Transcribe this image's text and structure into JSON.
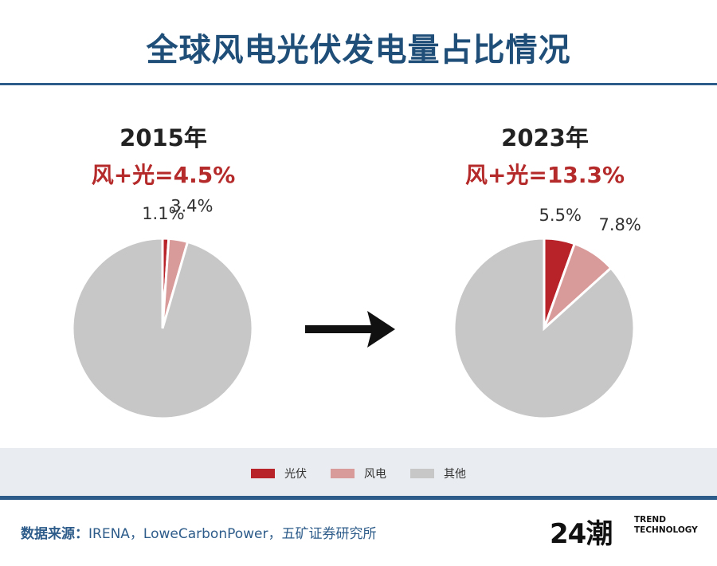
{
  "title": "全球风电光伏发电量占比情况",
  "colors": {
    "solar": "#b8232a",
    "wind": "#d99a9a",
    "other": "#c7c7c7",
    "accent": "#1f4e79"
  },
  "chart_data": [
    {
      "type": "pie",
      "title": "2015年",
      "subtitle": "风+光=4.5%",
      "slices": [
        {
          "name": "光伏",
          "value": 1.1,
          "label": "1.1%"
        },
        {
          "name": "风电",
          "value": 3.4,
          "label": "3.4%"
        },
        {
          "name": "其他",
          "value": 95.5,
          "label": ""
        }
      ]
    },
    {
      "type": "pie",
      "title": "2023年",
      "subtitle": "风+光=13.3%",
      "slices": [
        {
          "name": "光伏",
          "value": 5.5,
          "label": "5.5%"
        },
        {
          "name": "风电",
          "value": 7.8,
          "label": "7.8%"
        },
        {
          "name": "其他",
          "value": 86.7,
          "label": ""
        }
      ]
    }
  ],
  "legend": {
    "solar": "光伏",
    "wind": "风电",
    "other": "其他",
    "placement": "bottom"
  },
  "source": {
    "label": "数据来源：",
    "text": "IRENA，LoweCarbonPower，五矿证券研究所"
  },
  "logo": {
    "mark": "24潮",
    "line1": "TREND",
    "line2": "TECHNOLOGY"
  }
}
